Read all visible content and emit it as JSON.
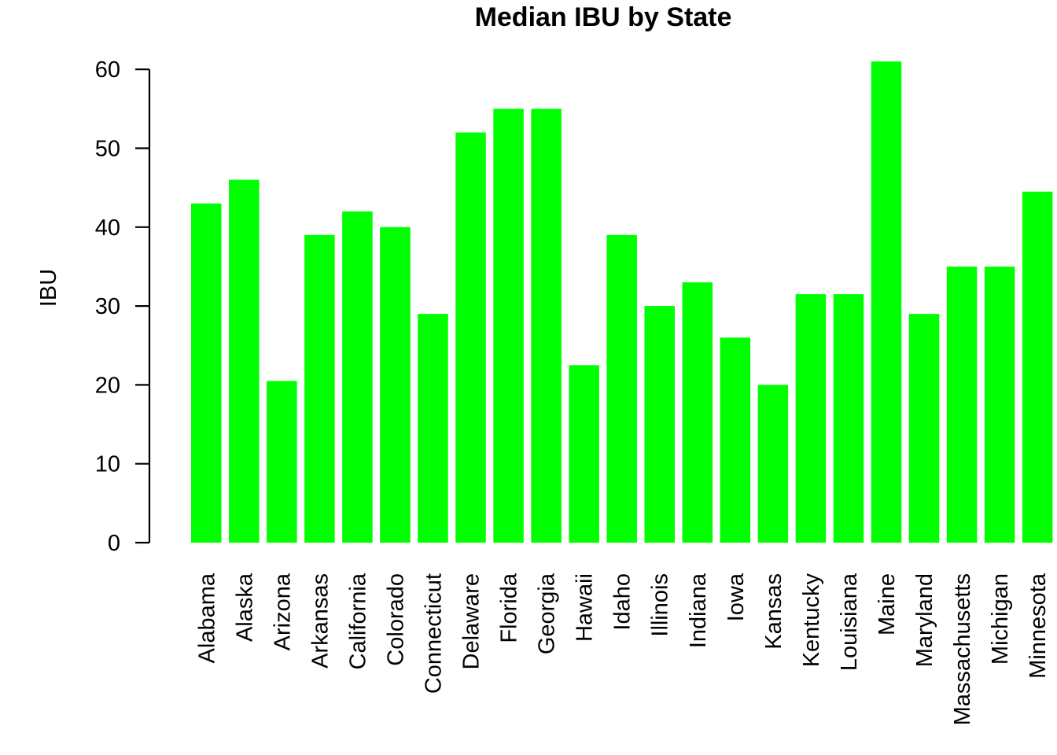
{
  "chart_data": {
    "type": "bar",
    "title": "Median IBU by State",
    "xlabel": "",
    "ylabel": "IBU",
    "ylim": [
      0,
      60
    ],
    "yticks": [
      0,
      10,
      20,
      30,
      40,
      50,
      60
    ],
    "categories": [
      "Alabama",
      "Alaska",
      "Arizona",
      "Arkansas",
      "California",
      "Colorado",
      "Connecticut",
      "Delaware",
      "Florida",
      "Georgia",
      "Hawaii",
      "Idaho",
      "Illinois",
      "Indiana",
      "Iowa",
      "Kansas",
      "Kentucky",
      "Louisiana",
      "Maine",
      "Maryland",
      "Massachusetts",
      "Michigan",
      "Minnesota"
    ],
    "values": [
      43,
      46,
      20.5,
      39,
      42,
      40,
      29,
      52,
      55,
      55,
      22.5,
      39,
      30,
      33,
      26,
      20,
      31.5,
      31.5,
      61,
      29,
      35,
      35,
      44.5
    ],
    "bar_color": "#00FF00",
    "grid": false,
    "legend": "none"
  }
}
